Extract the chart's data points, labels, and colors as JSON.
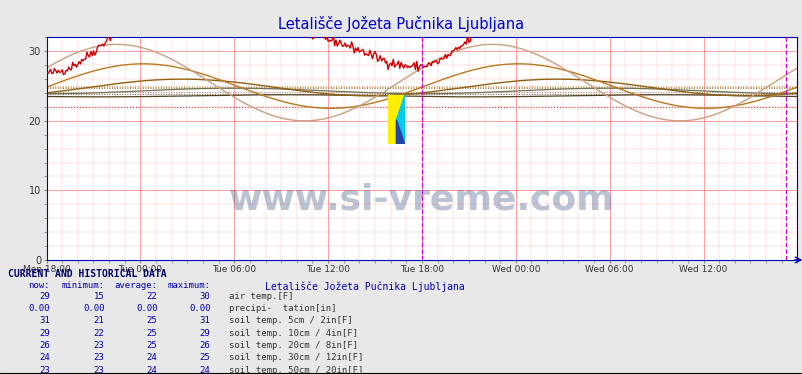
{
  "title": "Letališče Jožeta Pučnika Ljubljana",
  "title_color": "#0000cc",
  "bg_color": "#e8e8e8",
  "plot_bg_color": "#ffffff",
  "xlim": [
    0,
    576
  ],
  "ylim": [
    0,
    32
  ],
  "yticks": [
    0,
    10,
    20,
    30
  ],
  "xtick_labels": [
    "Mon 18:00",
    "Tue 00:00",
    "Tue 06:00",
    "Tue 12:00",
    "Tue 18:00",
    "Wed 00:00",
    "Wed 06:00",
    "Wed 12:00"
  ],
  "xtick_positions": [
    0,
    72,
    144,
    216,
    288,
    360,
    432,
    504
  ],
  "vline1": 288,
  "vline2": 567,
  "air_color": "#cc0000",
  "soil5_color": "#c8a080",
  "soil10_color": "#b87820",
  "soil20_color": "#906010",
  "soil30_color": "#707050",
  "soil50_color": "#504020",
  "watermark_text": "www.si-vreme.com",
  "watermark_color": "#1a3a6e",
  "watermark_alpha": 0.3,
  "watermark_fontsize": 26,
  "table_header": "CURRENT AND HISTORICAL DATA",
  "table_cols": [
    "now:",
    "minimum:",
    "average:",
    "maximum:"
  ],
  "table_data": [
    [
      "29",
      "15",
      "22",
      "30"
    ],
    [
      "0.00",
      "0.00",
      "0.00",
      "0.00"
    ],
    [
      "31",
      "21",
      "25",
      "31"
    ],
    [
      "29",
      "22",
      "25",
      "29"
    ],
    [
      "26",
      "23",
      "25",
      "26"
    ],
    [
      "24",
      "23",
      "24",
      "25"
    ],
    [
      "23",
      "23",
      "24",
      "24"
    ]
  ],
  "legend_title": "Letališče Jožeta Pučnika Ljubljana",
  "legend_colors": [
    "#cc0000",
    "#0000cc",
    "#c8a080",
    "#b87820",
    "#906010",
    "#707050",
    "#504020"
  ],
  "legend_labels": [
    "air temp.[F]",
    "precipi-  tation[in]",
    "soil temp. 5cm / 2in[F]",
    "soil temp. 10cm / 4in[F]",
    "soil temp. 20cm / 8in[F]",
    "soil temp. 30cm / 12in[F]",
    "soil temp. 50cm / 20in[F]"
  ]
}
